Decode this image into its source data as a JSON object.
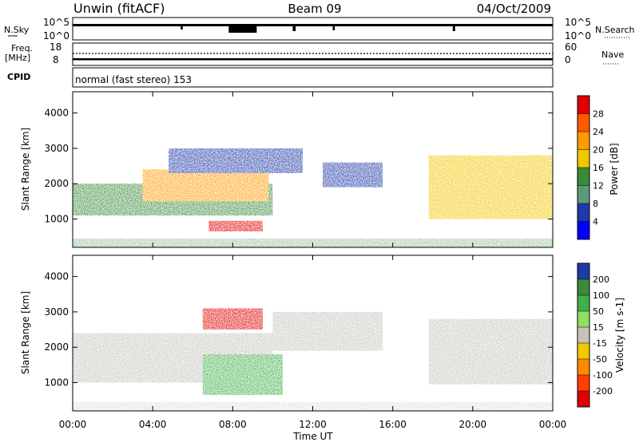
{
  "header": {
    "station": "Unwin (fitACF)",
    "beam": "Beam 09",
    "date": "04/Oct/2009"
  },
  "strips": {
    "nsky_label": "N.Sky",
    "nsearch_label": "N.Search",
    "nsky_ticks": [
      "10^5",
      "10^0"
    ],
    "nsearch_ticks": [
      "10^5",
      "10^0"
    ],
    "freq_label": "Freq.",
    "freq_unit": "[MHz]",
    "freq_ticks": [
      "18",
      "8"
    ],
    "nave_label": "Nave",
    "nave_ticks": [
      "60",
      "0"
    ],
    "cpid_label": "CPID",
    "cpid_text": "normal (fast stereo) 153"
  },
  "power_panel": {
    "ylabel": "Slant Range [km]",
    "yticks": [
      "4000",
      "3000",
      "2000",
      "1000"
    ],
    "colorbar_label": "Power [dB]",
    "colorbar_ticks": [
      "28",
      "24",
      "20",
      "16",
      "12",
      "8",
      "4"
    ],
    "colors": [
      "#e00000",
      "#ff5a00",
      "#ff9a00",
      "#f2c800",
      "#3a8a3a",
      "#5a9a7a",
      "#1f3aa8",
      "#0000ff"
    ]
  },
  "velocity_panel": {
    "ylabel": "Slant Range [km]",
    "yticks": [
      "4000",
      "3000",
      "2000",
      "1000"
    ],
    "colorbar_label": "Velocity [m s-1]",
    "colorbar_ticks": [
      "200",
      "100",
      "50",
      "15",
      "-15",
      "-50",
      "-100",
      "-200"
    ],
    "colors": [
      "#1f3aa8",
      "#3a8a3a",
      "#3fb04a",
      "#8fdf60",
      "#c4c4bc",
      "#f2c800",
      "#ff8a00",
      "#ff4000",
      "#e00000"
    ]
  },
  "xaxis": {
    "label": "Time UT",
    "ticks": [
      "00:00",
      "04:00",
      "08:00",
      "12:00",
      "16:00",
      "20:00",
      "00:00"
    ]
  },
  "chart_data": [
    {
      "type": "heatmap",
      "title": "Unwin (fitACF) Beam 09 04/Oct/2009",
      "quantity": "Power [dB]",
      "xlabel": "Time UT",
      "ylabel": "Slant Range [km]",
      "xlim_hours": [
        0,
        24
      ],
      "ylim": [
        200,
        4600
      ],
      "clim": [
        0,
        30
      ],
      "regions": [
        {
          "t": [
            0.0,
            10.0
          ],
          "range": [
            1100,
            2000
          ],
          "power": 14
        },
        {
          "t": [
            3.5,
            9.8
          ],
          "range": [
            1500,
            2400
          ],
          "power": 18
        },
        {
          "t": [
            6.8,
            9.5
          ],
          "range": [
            650,
            950
          ],
          "power": 28
        },
        {
          "t": [
            4.8,
            11.5
          ],
          "range": [
            2300,
            3000
          ],
          "power": 6
        },
        {
          "t": [
            12.5,
            15.5
          ],
          "range": [
            1900,
            2600
          ],
          "power": 5
        },
        {
          "t": [
            17.8,
            24.0
          ],
          "range": [
            1000,
            2800
          ],
          "power": 16
        }
      ]
    },
    {
      "type": "heatmap",
      "title": "Unwin (fitACF) Beam 09 04/Oct/2009",
      "quantity": "Velocity [m s-1]",
      "xlabel": "Time UT",
      "ylabel": "Slant Range [km]",
      "xlim_hours": [
        0,
        24
      ],
      "ylim": [
        200,
        4600
      ],
      "clim": [
        -250,
        250
      ],
      "regions": [
        {
          "t": [
            0.0,
            10.0
          ],
          "range": [
            1000,
            2400
          ],
          "velocity": 0
        },
        {
          "t": [
            6.5,
            9.5
          ],
          "range": [
            2500,
            3100
          ],
          "velocity": -200
        },
        {
          "t": [
            6.5,
            10.5
          ],
          "range": [
            650,
            1800
          ],
          "velocity": 40
        },
        {
          "t": [
            10.0,
            15.5
          ],
          "range": [
            1900,
            3000
          ],
          "velocity": 0
        },
        {
          "t": [
            17.8,
            24.0
          ],
          "range": [
            950,
            2800
          ],
          "velocity": 5
        }
      ]
    }
  ]
}
